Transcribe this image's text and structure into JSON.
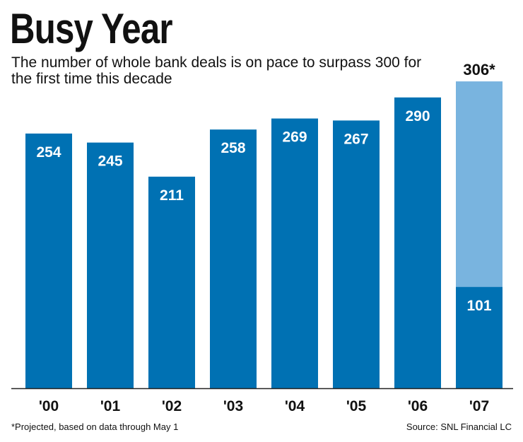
{
  "title": "Busy Year",
  "subtitle": "The number of whole bank deals is on pace to surpass 300 for the first time this decade",
  "footnote": "*Projected, based on data through May 1",
  "source": "Source: SNL Financial LC",
  "colors": {
    "bar": "#0071b3",
    "projected": "#79b4df",
    "axis": "#222222",
    "label": "#ffffff"
  },
  "chart_data": {
    "type": "bar",
    "categories": [
      "'00",
      "'01",
      "'02",
      "'03",
      "'04",
      "'05",
      "'06",
      "'07"
    ],
    "values": [
      254,
      245,
      211,
      258,
      269,
      267,
      290,
      101
    ],
    "value_labels": [
      "254",
      "245",
      "211",
      "258",
      "269",
      "267",
      "290",
      "101"
    ],
    "projected": {
      "category": "'07",
      "value": 306,
      "label": "306*"
    },
    "ylim": [
      0,
      320
    ],
    "grid": false,
    "title": "Busy Year",
    "xlabel": "",
    "ylabel": ""
  }
}
